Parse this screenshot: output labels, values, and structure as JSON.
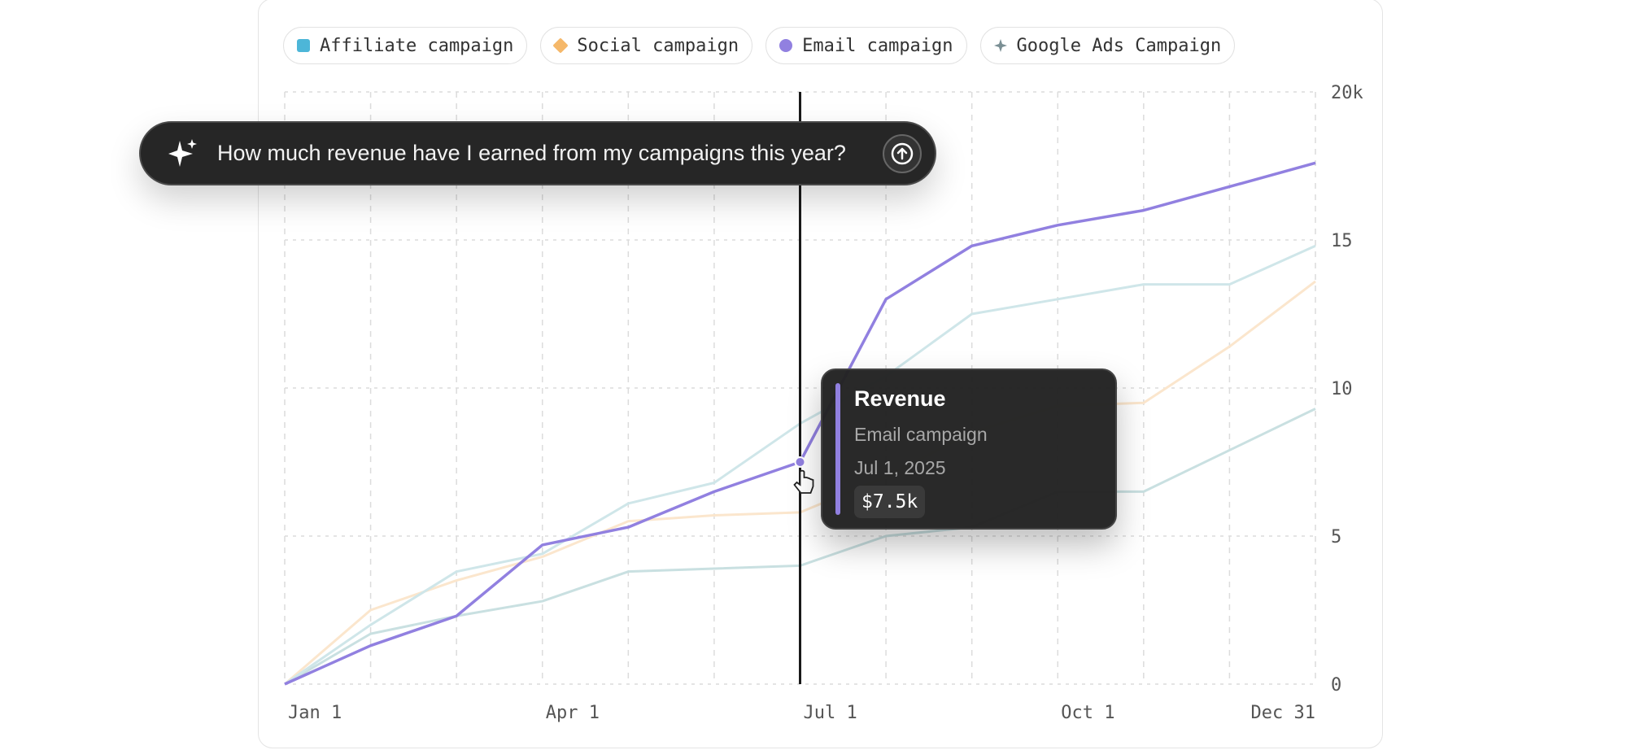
{
  "chart_data": {
    "type": "line",
    "title": "",
    "xlabel": "",
    "ylabel": "",
    "x_ticks": [
      "Jan 1",
      "Apr 1",
      "Jul 1",
      "Oct 1",
      "Dec 31"
    ],
    "y_ticks": [
      "0",
      "5",
      "10",
      "15",
      "20k"
    ],
    "ylim": [
      0,
      20000
    ],
    "grid": true,
    "legend_placement": "top-left",
    "x": [
      "Jan 1",
      "Feb 1",
      "Mar 1",
      "Apr 1",
      "May 1",
      "Jun 1",
      "Jul 1",
      "Aug 1",
      "Sep 1",
      "Oct 1",
      "Nov 1",
      "Dec 1",
      "Dec 31"
    ],
    "series": [
      {
        "name": "Affiliate campaign",
        "color": "#4db6d8",
        "line_color": "#cfe6e9",
        "marker": "square",
        "values": [
          0,
          2000,
          3800,
          4400,
          6100,
          6800,
          8800,
          10400,
          12500,
          13000,
          13500,
          13500,
          14800
        ]
      },
      {
        "name": "Social campaign",
        "color": "#f5b86a",
        "line_color": "#fbe6cd",
        "marker": "diamond",
        "values": [
          0,
          2500,
          3500,
          4300,
          5500,
          5700,
          5800,
          7000,
          8500,
          9400,
          9500,
          11400,
          13600
        ]
      },
      {
        "name": "Email campaign",
        "color": "#9180e0",
        "line_color": "#9180e0",
        "marker": "circle",
        "values": [
          0,
          1300,
          2300,
          4700,
          5300,
          6500,
          7500,
          13000,
          14800,
          15500,
          16000,
          16800,
          17600
        ]
      },
      {
        "name": "Google Ads Campaign",
        "color": "#7a8f94",
        "line_color": "#c9e0e1",
        "marker": "star",
        "values": [
          0,
          1700,
          2300,
          2800,
          3800,
          3900,
          4000,
          5000,
          5300,
          6500,
          6500,
          7900,
          9300
        ]
      }
    ],
    "highlight": {
      "series": "Email campaign",
      "x": "Jul 1"
    }
  },
  "prompt": {
    "text": "How much revenue have I earned from my campaigns this year?",
    "icon": "sparkle-icon",
    "send_icon": "arrow-up-icon"
  },
  "tooltip": {
    "title": "Revenue",
    "series": "Email campaign",
    "date": "Jul 1, 2025",
    "value": "$7.5k",
    "color": "#9180e0"
  }
}
